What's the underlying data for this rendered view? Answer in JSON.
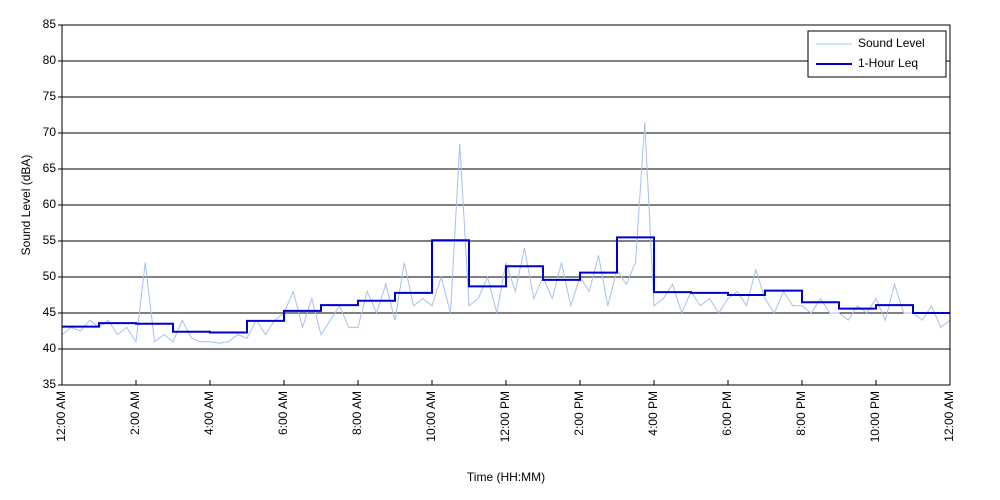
{
  "chart_data": {
    "type": "line",
    "xlabel": "Time (HH:MM)",
    "ylabel": "Sound Level (dBA)",
    "xlim": [
      0,
      24
    ],
    "ylim": [
      35,
      85
    ],
    "yticks": [
      35,
      40,
      45,
      50,
      55,
      60,
      65,
      70,
      75,
      80,
      85
    ],
    "xticks": [
      {
        "value": 0,
        "label": "12:00 AM"
      },
      {
        "value": 2,
        "label": "2:00 AM"
      },
      {
        "value": 4,
        "label": "4:00 AM"
      },
      {
        "value": 6,
        "label": "6:00 AM"
      },
      {
        "value": 8,
        "label": "8:00 AM"
      },
      {
        "value": 10,
        "label": "10:00 AM"
      },
      {
        "value": 12,
        "label": "12:00 PM"
      },
      {
        "value": 14,
        "label": "2:00 PM"
      },
      {
        "value": 16,
        "label": "4:00 PM"
      },
      {
        "value": 18,
        "label": "6:00 PM"
      },
      {
        "value": 20,
        "label": "8:00 PM"
      },
      {
        "value": 22,
        "label": "10:00 PM"
      },
      {
        "value": 24,
        "label": "12:00 AM"
      }
    ],
    "grid": true,
    "legend": "upper right",
    "series": [
      {
        "name": "Sound Level",
        "color": "#a8c0f0",
        "width": 1,
        "x": [
          0,
          0.25,
          0.5,
          0.75,
          1,
          1.25,
          1.5,
          1.75,
          2,
          2.25,
          2.5,
          2.75,
          3,
          3.25,
          3.5,
          3.75,
          4,
          4.25,
          4.5,
          4.75,
          5,
          5.25,
          5.5,
          5.75,
          6,
          6.25,
          6.5,
          6.75,
          7,
          7.25,
          7.5,
          7.75,
          8,
          8.25,
          8.5,
          8.75,
          9,
          9.25,
          9.5,
          9.75,
          10,
          10.25,
          10.5,
          10.75,
          11,
          11.25,
          11.5,
          11.75,
          12,
          12.25,
          12.5,
          12.75,
          13,
          13.25,
          13.5,
          13.75,
          14,
          14.25,
          14.5,
          14.75,
          15,
          15.25,
          15.5,
          15.75,
          16,
          16.25,
          16.5,
          16.75,
          17,
          17.25,
          17.5,
          17.75,
          18,
          18.25,
          18.5,
          18.75,
          19,
          19.25,
          19.5,
          19.75,
          20,
          20.25,
          20.5,
          20.75,
          21,
          21.25,
          21.5,
          21.75,
          22,
          22.25,
          22.5,
          22.75,
          23,
          23.25,
          23.5,
          23.75,
          24
        ],
        "values": [
          42,
          43,
          42.5,
          44,
          43,
          44,
          42,
          43,
          41,
          52,
          41,
          42,
          41,
          44,
          41.5,
          41,
          41,
          40.8,
          41,
          42,
          41.5,
          44,
          42,
          44,
          45,
          48,
          43,
          47,
          42,
          44,
          46,
          43,
          43,
          48,
          45,
          49,
          44,
          52,
          46,
          47,
          46,
          50,
          45,
          68.5,
          46,
          47,
          50,
          45,
          52,
          48,
          54,
          47,
          50,
          47,
          52,
          46,
          50,
          48,
          53,
          46,
          51,
          49,
          52,
          71.5,
          46,
          47,
          49,
          45,
          48,
          46,
          47,
          45,
          47,
          48,
          46,
          51,
          47,
          45,
          48,
          46,
          46,
          45,
          47,
          45,
          45,
          44,
          46,
          45,
          47,
          44,
          49,
          45,
          45,
          44,
          46,
          43,
          44
        ]
      },
      {
        "name": "1-Hour Leq",
        "color": "#0000cc",
        "width": 2,
        "step": true,
        "x": [
          0,
          1,
          2,
          3,
          4,
          5,
          6,
          7,
          8,
          9,
          10,
          11,
          12,
          13,
          14,
          15,
          16,
          17,
          18,
          19,
          20,
          21,
          22,
          23,
          24
        ],
        "values": [
          43.1,
          43.6,
          43.5,
          42.4,
          42.3,
          43.9,
          45.3,
          46.1,
          46.7,
          47.8,
          55.1,
          48.7,
          51.5,
          49.6,
          50.6,
          55.5,
          47.9,
          47.8,
          47.5,
          48.1,
          46.5,
          45.6,
          46.1,
          45.0,
          45.0
        ]
      }
    ]
  }
}
